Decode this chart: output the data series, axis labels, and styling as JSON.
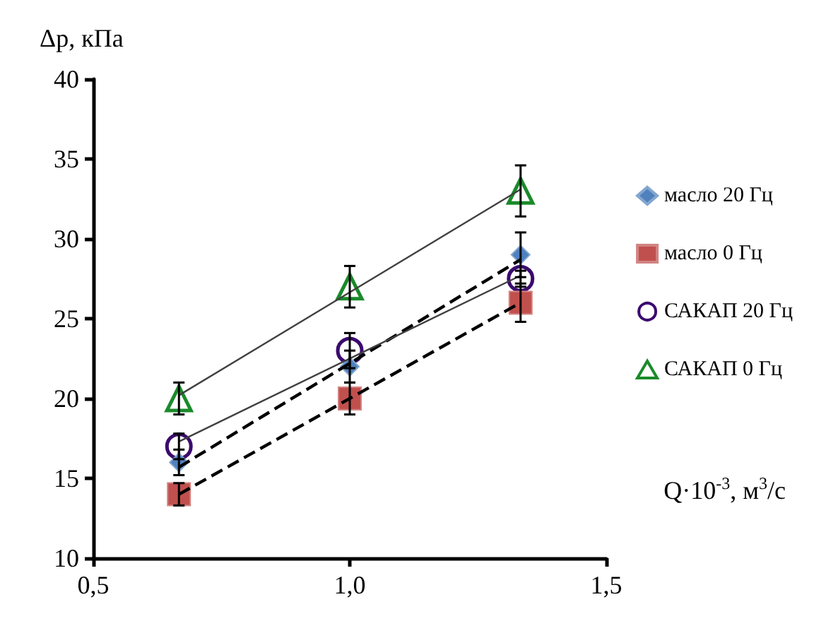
{
  "chart_data": {
    "type": "scatter",
    "xlabel": "Q·10$^{-3}$, м$^{3}$/с",
    "ylabel": "Δp, кПа",
    "xlim": [
      0.5,
      1.5
    ],
    "xticks": [
      {
        "value": 0.5,
        "label": "0,5"
      },
      {
        "value": 1.0,
        "label": "1,0"
      },
      {
        "value": 1.5,
        "label": "1,5"
      }
    ],
    "ylim": [
      10,
      40
    ],
    "yticks": [
      10,
      15,
      20,
      25,
      30,
      35,
      40
    ],
    "grid": false,
    "legend": "right",
    "series": [
      {
        "name": "масло 20 Гц",
        "color": "#4f81bd",
        "marker": "diamond",
        "x": [
          0.667,
          1.0,
          1.333
        ],
        "values": [
          16,
          22,
          29
        ],
        "errors": [
          0.8,
          1.0,
          1.4
        ]
      },
      {
        "name": "масло 0 Гц",
        "color": "#c0504d",
        "marker": "square",
        "x": [
          0.667,
          1.0,
          1.333
        ],
        "values": [
          14,
          20,
          26
        ],
        "errors": [
          0.7,
          1.0,
          1.2
        ]
      },
      {
        "name": "САКАП 20 Гц",
        "color": "#3b0a6e",
        "marker": "circle",
        "x": [
          0.667,
          1.0,
          1.333
        ],
        "values": [
          17,
          23,
          27.5
        ],
        "errors": [
          0.8,
          1.1,
          0.5
        ]
      },
      {
        "name": "САКАП 0 Гц",
        "color": "#1a8a2a",
        "marker": "triangle",
        "x": [
          0.667,
          1.0,
          1.333
        ],
        "values": [
          20,
          27,
          33
        ],
        "errors": [
          1.0,
          1.3,
          1.6
        ]
      },
      {
        "type": "line",
        "color": "#000000",
        "line_style": "dashed",
        "marker": "none",
        "x": [
          0.667,
          1.333
        ],
        "values": [
          15.7,
          28.7
        ]
      },
      {
        "type": "line",
        "color": "#000000",
        "line_style": "dashed",
        "marker": "none",
        "x": [
          0.667,
          1.333
        ],
        "values": [
          14,
          26
        ]
      },
      {
        "type": "line",
        "color": "#404040",
        "line_style": "solid",
        "marker": "none",
        "x": [
          0.667,
          1.333
        ],
        "values": [
          17.3,
          27.7
        ]
      },
      {
        "type": "line",
        "color": "#404040",
        "line_style": "solid",
        "marker": "none",
        "x": [
          0.667,
          1.333
        ],
        "values": [
          20.2,
          33.1
        ]
      }
    ]
  }
}
